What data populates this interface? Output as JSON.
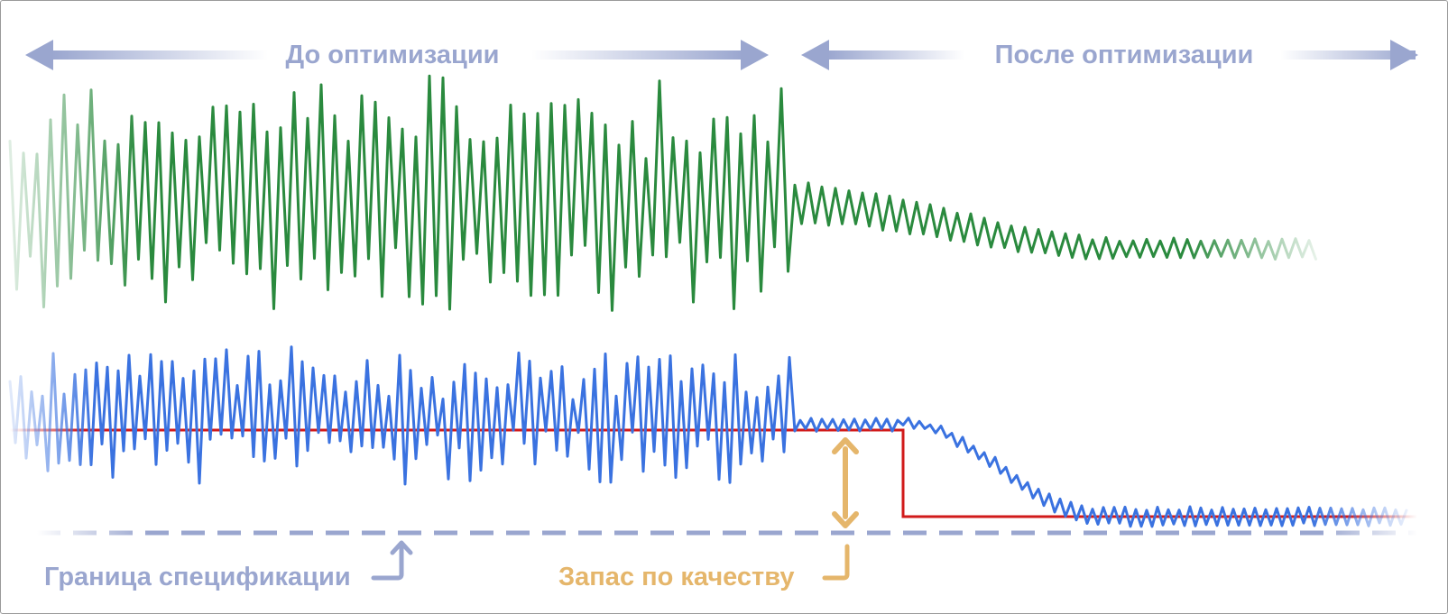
{
  "header": {
    "before_label": "До оптимизации",
    "after_label": "После оптимизации"
  },
  "annotations": {
    "spec_limit_label": "Граница спецификации",
    "quality_margin_label": "Запас по качеству"
  },
  "colors": {
    "header_arrow": "#9aa6cf",
    "green_trace": "#2a8a3e",
    "blue_trace": "#3a72e0",
    "red_target": "#d11a1a",
    "spec_dashed": "#9aa6cf",
    "margin_arrow": "#e5b66b",
    "spec_label": "#9aa6cf",
    "margin_label": "#e5b66b"
  }
}
